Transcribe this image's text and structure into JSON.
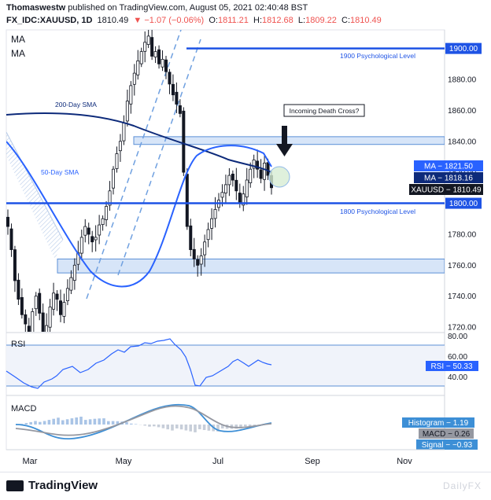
{
  "header": {
    "author": "Thomaswestw",
    "published": "published on TradingView.com, August 05, 2021 02:40:48 BST",
    "symbol": "FX_IDC:XAUUSD, 1D",
    "last": "1810.49",
    "change": "▼ −1.07 (−0.06%)",
    "open_label": "O:",
    "open": "1811.21",
    "high_label": "H:",
    "high": "1812.68",
    "low_label": "L:",
    "low": "1809.22",
    "close_label": "C:",
    "close": "1810.49"
  },
  "indicators": {
    "ma1": "MA",
    "ma2": "MA"
  },
  "annotations": {
    "sma200": "200-Day SMA",
    "sma50": "50-Day SMA",
    "death_cross": "Incoming Death Cross?",
    "level_1900": "1900 Psychological Level",
    "level_1800": "1800 Psychological Level"
  },
  "price_tags": {
    "ma1": "MA − 1821.50",
    "ma2": "MA − 1818.16",
    "xau": "XAUUSD − 1810.49",
    "level_1900": "1900.00",
    "level_1800": "1800.00"
  },
  "rsi": {
    "label": "RSI",
    "tag": "RSI − 50.33",
    "ticks": [
      "80.00",
      "60.00",
      "40.00"
    ]
  },
  "macd": {
    "label": "MACD",
    "histogram_tag": "Histogram − 1.19",
    "macd_tag": "MACD − 0.26",
    "signal_tag": "Signal − −0.93"
  },
  "footer": {
    "brand": "TradingView",
    "watermark": "DailyFX"
  },
  "colors": {
    "blue": "#1e53e5",
    "navy": "#0d2a7a",
    "zone": "#c9dcf5",
    "candle": "#131722",
    "macd_blue": "#3d8fd6",
    "macd_gray": "#9598a1",
    "hist": "#a9c4e6",
    "rsi_bg": "#f0f3fa"
  },
  "chart_data": {
    "type": "candlestick",
    "x_ticks": [
      "Mar",
      "May",
      "Jul",
      "Sep",
      "Nov"
    ],
    "y_ticks": [
      1720,
      1740,
      1760,
      1780,
      1800,
      1820,
      1840,
      1860,
      1880,
      1900
    ],
    "ylim": [
      1717,
      1912
    ],
    "levels": [
      1900,
      1800
    ],
    "resistance_zone": [
      1838,
      1843
    ],
    "support_zone": [
      1755,
      1764
    ],
    "ma_tags": [
      1821.5,
      1818.16
    ],
    "last_price": 1810.49,
    "rsi_ticks": [
      80,
      60,
      40
    ],
    "rsi_last": 50.33,
    "macd_values": {
      "histogram": 1.19,
      "macd": 0.26,
      "signal": -0.93
    },
    "closes": [
      1785,
      1770,
      1750,
      1738,
      1728,
      1722,
      1717,
      1730,
      1740,
      1729,
      1717,
      1721,
      1733,
      1742,
      1738,
      1728,
      1736,
      1745,
      1752,
      1760,
      1768,
      1778,
      1785,
      1780,
      1775,
      1778,
      1786,
      1790,
      1798,
      1808,
      1822,
      1832,
      1840,
      1852,
      1866,
      1876,
      1884,
      1892,
      1898,
      1904,
      1908,
      1895,
      1898,
      1890,
      1893,
      1885,
      1877,
      1870,
      1864,
      1858,
      1820,
      1785,
      1770,
      1764,
      1760,
      1766,
      1775,
      1783,
      1790,
      1796,
      1802,
      1807,
      1812,
      1818,
      1815,
      1808,
      1800,
      1806,
      1815,
      1822,
      1828,
      1822,
      1816,
      1826,
      1818,
      1810
    ]
  }
}
